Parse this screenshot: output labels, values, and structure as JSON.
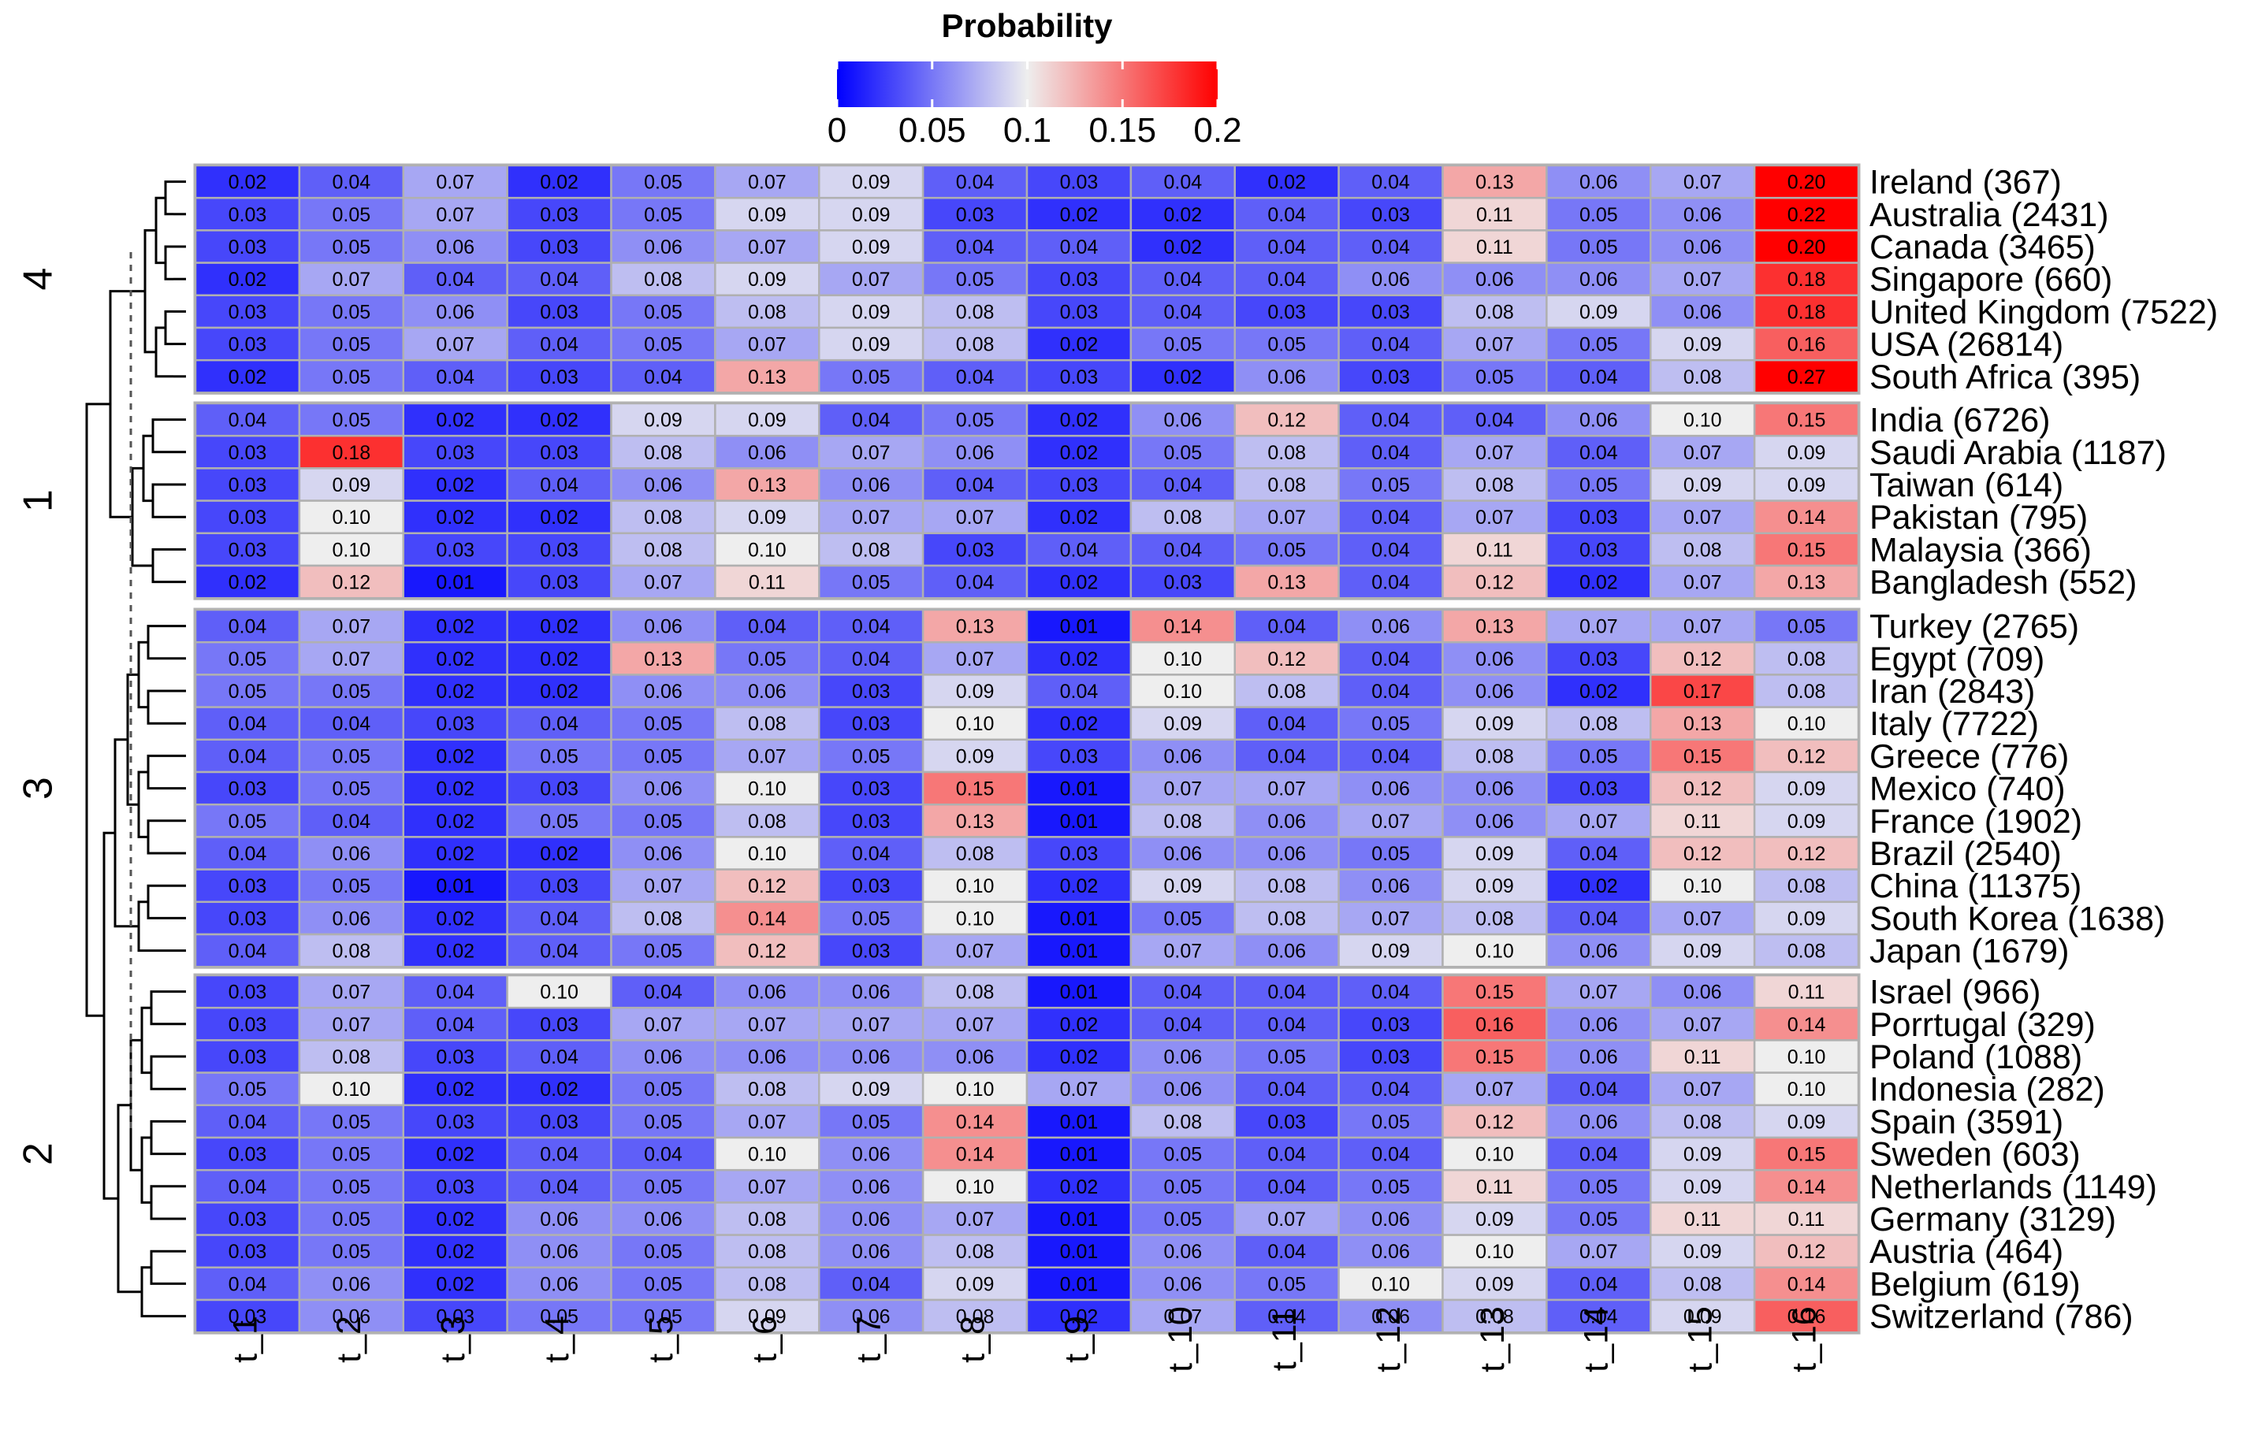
{
  "chart_data": {
    "type": "heatmap",
    "title": "Probability",
    "legend": {
      "title": "Probability",
      "ticks": [
        "0",
        "0.05",
        "0.1",
        "0.15",
        "0.2"
      ],
      "range": [
        0,
        0.2
      ],
      "colors": [
        "#0000ff",
        "#eeeeee",
        "#ff0000"
      ],
      "placement": "top"
    },
    "columns": [
      "t_1",
      "t_2",
      "t_3",
      "t_4",
      "t_5",
      "t_6",
      "t_7",
      "t_8",
      "t_9",
      "t_10",
      "t_11",
      "t_12",
      "t_13",
      "t_14",
      "t_15",
      "t_16"
    ],
    "clusters": [
      {
        "label": "4",
        "rows": [
          {
            "name": "Ireland (367)",
            "values": [
              0.02,
              0.04,
              0.07,
              0.02,
              0.05,
              0.07,
              0.09,
              0.04,
              0.03,
              0.04,
              0.02,
              0.04,
              0.13,
              0.06,
              0.07,
              0.2
            ]
          },
          {
            "name": "Australia (2431)",
            "values": [
              0.03,
              0.05,
              0.07,
              0.03,
              0.05,
              0.09,
              0.09,
              0.03,
              0.02,
              0.02,
              0.04,
              0.03,
              0.11,
              0.05,
              0.06,
              0.22
            ]
          },
          {
            "name": "Canada (3465)",
            "values": [
              0.03,
              0.05,
              0.06,
              0.03,
              0.06,
              0.07,
              0.09,
              0.04,
              0.04,
              0.02,
              0.04,
              0.04,
              0.11,
              0.05,
              0.06,
              0.2
            ]
          },
          {
            "name": "Singapore (660)",
            "values": [
              0.02,
              0.07,
              0.04,
              0.04,
              0.08,
              0.09,
              0.07,
              0.05,
              0.03,
              0.04,
              0.04,
              0.06,
              0.06,
              0.06,
              0.07,
              0.18
            ]
          },
          {
            "name": "United Kingdom (7522)",
            "values": [
              0.03,
              0.05,
              0.06,
              0.03,
              0.05,
              0.08,
              0.09,
              0.08,
              0.03,
              0.04,
              0.03,
              0.03,
              0.08,
              0.09,
              0.06,
              0.18
            ]
          },
          {
            "name": "USA (26814)",
            "values": [
              0.03,
              0.05,
              0.07,
              0.04,
              0.05,
              0.07,
              0.09,
              0.08,
              0.02,
              0.05,
              0.05,
              0.04,
              0.07,
              0.05,
              0.09,
              0.16
            ]
          },
          {
            "name": "South Africa (395)",
            "values": [
              0.02,
              0.05,
              0.04,
              0.03,
              0.04,
              0.13,
              0.05,
              0.04,
              0.03,
              0.02,
              0.06,
              0.03,
              0.05,
              0.04,
              0.08,
              0.27
            ]
          }
        ]
      },
      {
        "label": "1",
        "rows": [
          {
            "name": "India (6726)",
            "values": [
              0.04,
              0.05,
              0.02,
              0.02,
              0.09,
              0.09,
              0.04,
              0.05,
              0.02,
              0.06,
              0.12,
              0.04,
              0.04,
              0.06,
              0.1,
              0.15
            ]
          },
          {
            "name": "Saudi Arabia (1187)",
            "values": [
              0.03,
              0.18,
              0.03,
              0.03,
              0.08,
              0.06,
              0.07,
              0.06,
              0.02,
              0.05,
              0.08,
              0.04,
              0.07,
              0.04,
              0.07,
              0.09
            ]
          },
          {
            "name": "Taiwan (614)",
            "values": [
              0.03,
              0.09,
              0.02,
              0.04,
              0.06,
              0.13,
              0.06,
              0.04,
              0.03,
              0.04,
              0.08,
              0.05,
              0.08,
              0.05,
              0.09,
              0.09
            ]
          },
          {
            "name": "Pakistan (795)",
            "values": [
              0.03,
              0.1,
              0.02,
              0.02,
              0.08,
              0.09,
              0.07,
              0.07,
              0.02,
              0.08,
              0.07,
              0.04,
              0.07,
              0.03,
              0.07,
              0.14
            ]
          },
          {
            "name": "Malaysia (366)",
            "values": [
              0.03,
              0.1,
              0.03,
              0.03,
              0.08,
              0.1,
              0.08,
              0.03,
              0.04,
              0.04,
              0.05,
              0.04,
              0.11,
              0.03,
              0.08,
              0.15
            ]
          },
          {
            "name": "Bangladesh (552)",
            "values": [
              0.02,
              0.12,
              0.01,
              0.03,
              0.07,
              0.11,
              0.05,
              0.04,
              0.02,
              0.03,
              0.13,
              0.04,
              0.12,
              0.02,
              0.07,
              0.13
            ]
          }
        ]
      },
      {
        "label": "3",
        "rows": [
          {
            "name": "Turkey (2765)",
            "values": [
              0.04,
              0.07,
              0.02,
              0.02,
              0.06,
              0.04,
              0.04,
              0.13,
              0.01,
              0.14,
              0.04,
              0.06,
              0.13,
              0.07,
              0.07,
              0.05
            ]
          },
          {
            "name": "Egypt (709)",
            "values": [
              0.05,
              0.07,
              0.02,
              0.02,
              0.13,
              0.05,
              0.04,
              0.07,
              0.02,
              0.1,
              0.12,
              0.04,
              0.06,
              0.03,
              0.12,
              0.08
            ]
          },
          {
            "name": "Iran (2843)",
            "values": [
              0.05,
              0.05,
              0.02,
              0.02,
              0.06,
              0.06,
              0.03,
              0.09,
              0.04,
              0.1,
              0.08,
              0.04,
              0.06,
              0.02,
              0.17,
              0.08
            ]
          },
          {
            "name": "Italy (7722)",
            "values": [
              0.04,
              0.04,
              0.03,
              0.04,
              0.05,
              0.08,
              0.03,
              0.1,
              0.02,
              0.09,
              0.04,
              0.05,
              0.09,
              0.08,
              0.13,
              0.1
            ]
          },
          {
            "name": "Greece (776)",
            "values": [
              0.04,
              0.05,
              0.02,
              0.05,
              0.05,
              0.07,
              0.05,
              0.09,
              0.03,
              0.06,
              0.04,
              0.04,
              0.08,
              0.05,
              0.15,
              0.12
            ]
          },
          {
            "name": "Mexico (740)",
            "values": [
              0.03,
              0.05,
              0.02,
              0.03,
              0.06,
              0.1,
              0.03,
              0.15,
              0.01,
              0.07,
              0.07,
              0.06,
              0.06,
              0.03,
              0.12,
              0.09
            ]
          },
          {
            "name": "France (1902)",
            "values": [
              0.05,
              0.04,
              0.02,
              0.05,
              0.05,
              0.08,
              0.03,
              0.13,
              0.01,
              0.08,
              0.06,
              0.07,
              0.06,
              0.07,
              0.11,
              0.09
            ]
          },
          {
            "name": "Brazil (2540)",
            "values": [
              0.04,
              0.06,
              0.02,
              0.02,
              0.06,
              0.1,
              0.04,
              0.08,
              0.03,
              0.06,
              0.06,
              0.05,
              0.09,
              0.04,
              0.12,
              0.12
            ]
          },
          {
            "name": "China (11375)",
            "values": [
              0.03,
              0.05,
              0.01,
              0.03,
              0.07,
              0.12,
              0.03,
              0.1,
              0.02,
              0.09,
              0.08,
              0.06,
              0.09,
              0.02,
              0.1,
              0.08
            ]
          },
          {
            "name": "South Korea (1638)",
            "values": [
              0.03,
              0.06,
              0.02,
              0.04,
              0.08,
              0.14,
              0.05,
              0.1,
              0.01,
              0.05,
              0.08,
              0.07,
              0.08,
              0.04,
              0.07,
              0.09
            ]
          },
          {
            "name": "Japan (1679)",
            "values": [
              0.04,
              0.08,
              0.02,
              0.04,
              0.05,
              0.12,
              0.03,
              0.07,
              0.01,
              0.07,
              0.06,
              0.09,
              0.1,
              0.06,
              0.09,
              0.08
            ]
          }
        ]
      },
      {
        "label": "2",
        "rows": [
          {
            "name": "Israel (966)",
            "values": [
              0.03,
              0.07,
              0.04,
              0.1,
              0.04,
              0.06,
              0.06,
              0.08,
              0.01,
              0.04,
              0.04,
              0.04,
              0.15,
              0.07,
              0.06,
              0.11
            ]
          },
          {
            "name": "Porrtugal (329)",
            "values": [
              0.03,
              0.07,
              0.04,
              0.03,
              0.07,
              0.07,
              0.07,
              0.07,
              0.02,
              0.04,
              0.04,
              0.03,
              0.16,
              0.06,
              0.07,
              0.14
            ]
          },
          {
            "name": "Poland (1088)",
            "values": [
              0.03,
              0.08,
              0.03,
              0.04,
              0.06,
              0.06,
              0.06,
              0.06,
              0.02,
              0.06,
              0.05,
              0.03,
              0.15,
              0.06,
              0.11,
              0.1
            ]
          },
          {
            "name": "Indonesia (282)",
            "values": [
              0.05,
              0.1,
              0.02,
              0.02,
              0.05,
              0.08,
              0.09,
              0.1,
              0.07,
              0.06,
              0.04,
              0.04,
              0.07,
              0.04,
              0.07,
              0.1
            ]
          },
          {
            "name": "Spain (3591)",
            "values": [
              0.04,
              0.05,
              0.03,
              0.03,
              0.05,
              0.07,
              0.05,
              0.14,
              0.01,
              0.08,
              0.03,
              0.05,
              0.12,
              0.06,
              0.08,
              0.09
            ]
          },
          {
            "name": "Sweden (603)",
            "values": [
              0.03,
              0.05,
              0.02,
              0.04,
              0.04,
              0.1,
              0.06,
              0.14,
              0.01,
              0.05,
              0.04,
              0.04,
              0.1,
              0.04,
              0.09,
              0.15
            ]
          },
          {
            "name": "Netherlands (1149)",
            "values": [
              0.04,
              0.05,
              0.03,
              0.04,
              0.05,
              0.07,
              0.06,
              0.1,
              0.02,
              0.05,
              0.04,
              0.05,
              0.11,
              0.05,
              0.09,
              0.14
            ]
          },
          {
            "name": "Germany (3129)",
            "values": [
              0.03,
              0.05,
              0.02,
              0.06,
              0.06,
              0.08,
              0.06,
              0.07,
              0.01,
              0.05,
              0.07,
              0.06,
              0.09,
              0.05,
              0.11,
              0.11
            ]
          },
          {
            "name": "Austria (464)",
            "values": [
              0.03,
              0.05,
              0.02,
              0.06,
              0.05,
              0.08,
              0.06,
              0.08,
              0.01,
              0.06,
              0.04,
              0.06,
              0.1,
              0.07,
              0.09,
              0.12
            ]
          },
          {
            "name": "Belgium (619)",
            "values": [
              0.04,
              0.06,
              0.02,
              0.06,
              0.05,
              0.08,
              0.04,
              0.09,
              0.01,
              0.06,
              0.05,
              0.1,
              0.09,
              0.04,
              0.08,
              0.14
            ]
          },
          {
            "name": "Switzerland (786)",
            "values": [
              0.03,
              0.06,
              0.03,
              0.05,
              0.05,
              0.09,
              0.06,
              0.08,
              0.02,
              0.07,
              0.04,
              0.06,
              0.08,
              0.04,
              0.09,
              0.16
            ]
          }
        ]
      }
    ]
  }
}
